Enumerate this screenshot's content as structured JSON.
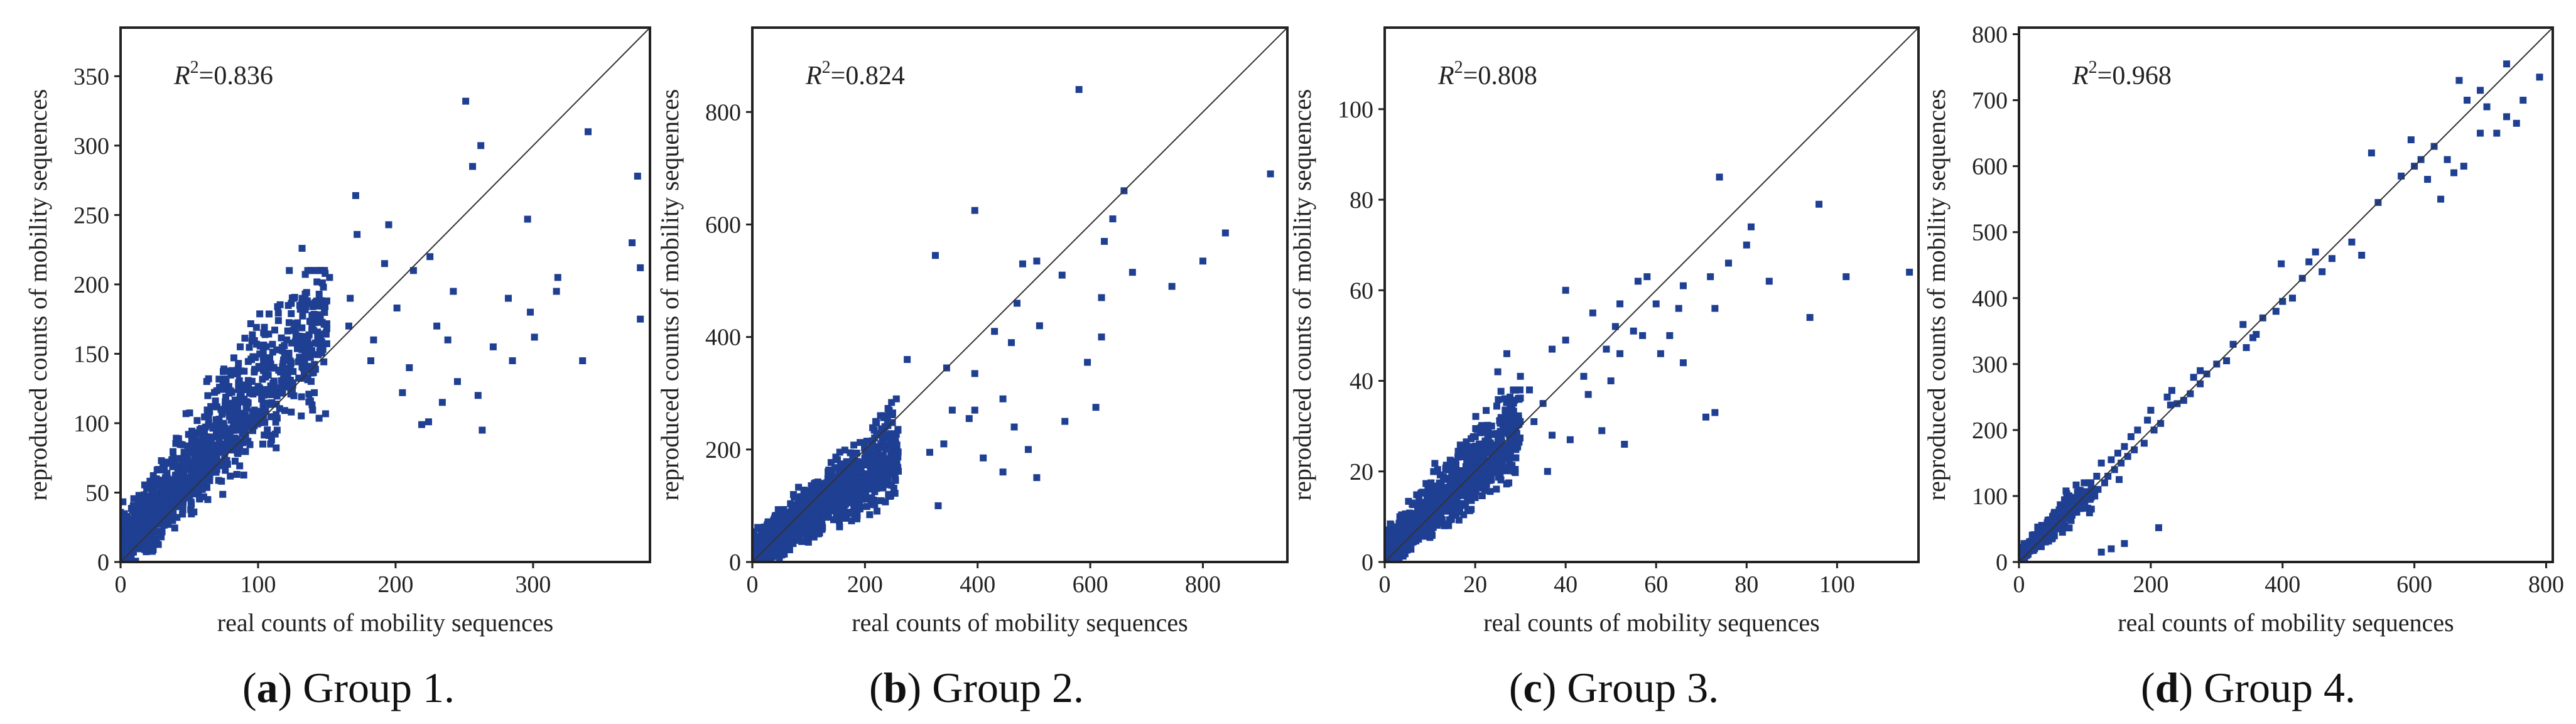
{
  "figure_captions": [
    {
      "label": "a",
      "text": "Group 1."
    },
    {
      "label": "b",
      "text": "Group 2."
    },
    {
      "label": "c",
      "text": "Group 3."
    },
    {
      "label": "d",
      "text": "Group 4."
    }
  ],
  "style": {
    "point_color": "#1f3f93",
    "line_color": "#333333",
    "frame_color": "#222222"
  },
  "chart_data": [
    {
      "type": "scatter",
      "title": "(a) Group 1.",
      "xlabel": "real counts of mobility sequences",
      "ylabel": "reproduced counts of mobility sequences",
      "annotation": {
        "symbol": "R",
        "sup": "2",
        "value": "=0.836"
      },
      "xlim": [
        0,
        385
      ],
      "ylim": [
        0,
        385
      ],
      "xticks": [
        0,
        100,
        200,
        300
      ],
      "yticks": [
        0,
        50,
        100,
        150,
        200,
        250,
        300,
        350
      ],
      "reference_line": "y = x",
      "bulk": {
        "count": 1400,
        "x_max": 150,
        "y_max": 210,
        "corr": 0.75,
        "seed": 11
      },
      "points": [
        [
          378,
          175
        ],
        [
          376,
          278
        ],
        [
          378,
          212
        ],
        [
          372,
          230
        ],
        [
          340,
          310
        ],
        [
          336,
          145
        ],
        [
          318,
          205
        ],
        [
          317,
          195
        ],
        [
          301,
          162
        ],
        [
          296,
          247
        ],
        [
          263,
          95
        ],
        [
          256,
          285
        ],
        [
          251,
          332
        ],
        [
          242,
          195
        ],
        [
          238,
          160
        ],
        [
          225,
          220
        ],
        [
          219,
          99
        ],
        [
          213,
          210
        ],
        [
          205,
          122
        ],
        [
          195,
          243
        ],
        [
          201,
          183
        ],
        [
          184,
          160
        ],
        [
          167,
          190
        ],
        [
          152,
          205
        ],
        [
          172,
          236
        ],
        [
          132,
          226
        ],
        [
          171,
          264
        ],
        [
          192,
          215
        ],
        [
          260,
          120
        ],
        [
          282,
          190
        ],
        [
          285,
          145
        ],
        [
          230,
          170
        ],
        [
          210,
          140
        ],
        [
          182,
          145
        ],
        [
          166,
          170
        ],
        [
          234,
          115
        ],
        [
          271,
          155
        ],
        [
          298,
          180
        ],
        [
          245,
          130
        ],
        [
          224,
          101
        ],
        [
          262,
          300
        ]
      ]
    },
    {
      "type": "scatter",
      "title": "(b) Group 2.",
      "xlabel": "real counts of mobility sequences",
      "ylabel": "reproduced counts of mobility sequences",
      "annotation": {
        "symbol": "R",
        "sup": "2",
        "value": "=0.824"
      },
      "xlim": [
        0,
        950
      ],
      "ylim": [
        0,
        950
      ],
      "xticks": [
        0,
        200,
        400,
        600,
        800
      ],
      "yticks": [
        0,
        200,
        400,
        600,
        800
      ],
      "reference_line": "y = x",
      "bulk": {
        "count": 1400,
        "x_max": 260,
        "y_max": 290,
        "corr": 0.6,
        "seed": 23
      },
      "points": [
        [
          580,
          840
        ],
        [
          920,
          690
        ],
        [
          395,
          625
        ],
        [
          325,
          545
        ],
        [
          640,
          610
        ],
        [
          660,
          660
        ],
        [
          625,
          570
        ],
        [
          620,
          470
        ],
        [
          745,
          490
        ],
        [
          800,
          535
        ],
        [
          840,
          585
        ],
        [
          675,
          515
        ],
        [
          550,
          510
        ],
        [
          505,
          535
        ],
        [
          480,
          530
        ],
        [
          620,
          400
        ],
        [
          470,
          460
        ],
        [
          430,
          410
        ],
        [
          460,
          390
        ],
        [
          395,
          335
        ],
        [
          555,
          250
        ],
        [
          610,
          275
        ],
        [
          445,
          290
        ],
        [
          395,
          270
        ],
        [
          505,
          150
        ],
        [
          465,
          240
        ],
        [
          410,
          185
        ],
        [
          340,
          210
        ],
        [
          315,
          195
        ],
        [
          355,
          270
        ],
        [
          490,
          200
        ],
        [
          385,
          255
        ],
        [
          330,
          100
        ],
        [
          445,
          160
        ],
        [
          345,
          345
        ],
        [
          275,
          360
        ],
        [
          510,
          420
        ],
        [
          595,
          355
        ]
      ]
    },
    {
      "type": "scatter",
      "title": "(c) Group 3.",
      "xlabel": "real counts of mobility sequences",
      "ylabel": "reproduced counts of mobility sequences",
      "annotation": {
        "symbol": "R",
        "sup": "2",
        "value": "=0.808"
      },
      "xlim": [
        0,
        118
      ],
      "ylim": [
        0,
        118
      ],
      "xticks": [
        0,
        20,
        40,
        60,
        80,
        100
      ],
      "yticks": [
        0,
        20,
        40,
        60,
        80,
        100
      ],
      "reference_line": "y = x",
      "bulk": {
        "count": 1300,
        "x_max": 30,
        "y_max": 38,
        "corr": 0.7,
        "seed": 37
      },
      "points": [
        [
          116,
          64
        ],
        [
          102,
          63
        ],
        [
          94,
          54
        ],
        [
          96,
          79
        ],
        [
          81,
          74
        ],
        [
          85,
          62
        ],
        [
          80,
          70
        ],
        [
          74,
          85
        ],
        [
          76,
          66
        ],
        [
          72,
          63
        ],
        [
          73,
          33
        ],
        [
          71,
          32
        ],
        [
          73,
          56
        ],
        [
          66,
          61
        ],
        [
          65,
          56
        ],
        [
          60,
          57
        ],
        [
          63,
          50
        ],
        [
          56,
          62
        ],
        [
          58,
          63
        ],
        [
          57,
          50
        ],
        [
          55,
          51
        ],
        [
          52,
          57
        ],
        [
          51,
          52
        ],
        [
          52,
          46
        ],
        [
          49,
          47
        ],
        [
          46,
          55
        ],
        [
          44,
          41
        ],
        [
          40,
          60
        ],
        [
          40,
          49
        ],
        [
          37,
          47
        ],
        [
          45,
          37
        ],
        [
          48,
          29
        ],
        [
          35,
          35
        ],
        [
          33,
          31
        ],
        [
          30,
          41
        ],
        [
          32,
          38
        ],
        [
          37,
          28
        ],
        [
          28,
          33
        ],
        [
          27,
          46
        ],
        [
          25,
          42
        ],
        [
          29,
          23
        ],
        [
          22,
          29
        ],
        [
          36,
          20
        ],
        [
          41,
          27
        ],
        [
          50,
          40
        ],
        [
          53,
          26
        ],
        [
          61,
          46
        ],
        [
          66,
          44
        ]
      ]
    },
    {
      "type": "scatter",
      "title": "(d) Group 4.",
      "xlabel": "real counts of mobility sequences",
      "ylabel": "reproduced counts of mobility sequences",
      "annotation": {
        "symbol": "R",
        "sup": "2",
        "value": "=0.968"
      },
      "xlim": [
        0,
        810
      ],
      "ylim": [
        0,
        810
      ],
      "xticks": [
        0,
        200,
        400,
        600,
        800
      ],
      "yticks": [
        0,
        100,
        200,
        300,
        400,
        500,
        600,
        700,
        800
      ],
      "reference_line": "y = x",
      "bulk": {
        "count": 350,
        "x_max": 110,
        "y_max": 120,
        "corr": 0.85,
        "seed": 53
      },
      "points": [
        [
          740,
          755
        ],
        [
          790,
          735
        ],
        [
          765,
          700
        ],
        [
          755,
          665
        ],
        [
          740,
          675
        ],
        [
          725,
          650
        ],
        [
          710,
          690
        ],
        [
          700,
          715
        ],
        [
          680,
          700
        ],
        [
          668,
          730
        ],
        [
          675,
          600
        ],
        [
          660,
          590
        ],
        [
          640,
          550
        ],
        [
          650,
          610
        ],
        [
          630,
          630
        ],
        [
          610,
          610
        ],
        [
          600,
          600
        ],
        [
          595,
          640
        ],
        [
          545,
          545
        ],
        [
          535,
          620
        ],
        [
          520,
          465
        ],
        [
          505,
          485
        ],
        [
          475,
          460
        ],
        [
          450,
          470
        ],
        [
          440,
          455
        ],
        [
          430,
          430
        ],
        [
          415,
          400
        ],
        [
          400,
          395
        ],
        [
          398,
          452
        ],
        [
          390,
          380
        ],
        [
          370,
          370
        ],
        [
          360,
          345
        ],
        [
          345,
          325
        ],
        [
          340,
          360
        ],
        [
          325,
          330
        ],
        [
          315,
          305
        ],
        [
          300,
          300
        ],
        [
          285,
          285
        ],
        [
          275,
          270
        ],
        [
          265,
          280
        ],
        [
          260,
          255
        ],
        [
          250,
          245
        ],
        [
          240,
          240
        ],
        [
          232,
          260
        ],
        [
          225,
          250
        ],
        [
          215,
          210
        ],
        [
          205,
          200
        ],
        [
          200,
          230
        ],
        [
          195,
          215
        ],
        [
          190,
          180
        ],
        [
          180,
          200
        ],
        [
          175,
          170
        ],
        [
          170,
          190
        ],
        [
          165,
          160
        ],
        [
          160,
          175
        ],
        [
          155,
          150
        ],
        [
          150,
          165
        ],
        [
          145,
          140
        ],
        [
          140,
          155
        ],
        [
          135,
          130
        ],
        [
          130,
          120
        ],
        [
          125,
          150
        ],
        [
          120,
          110
        ],
        [
          118,
          130
        ],
        [
          115,
          100
        ],
        [
          212,
          52
        ],
        [
          160,
          28
        ],
        [
          140,
          20
        ],
        [
          125,
          15
        ],
        [
          152,
          125
        ],
        [
          230,
          238
        ],
        [
          275,
          290
        ],
        [
          355,
          340
        ],
        [
          460,
          440
        ],
        [
          580,
          585
        ],
        [
          620,
          580
        ],
        [
          700,
          650
        ]
      ]
    }
  ]
}
